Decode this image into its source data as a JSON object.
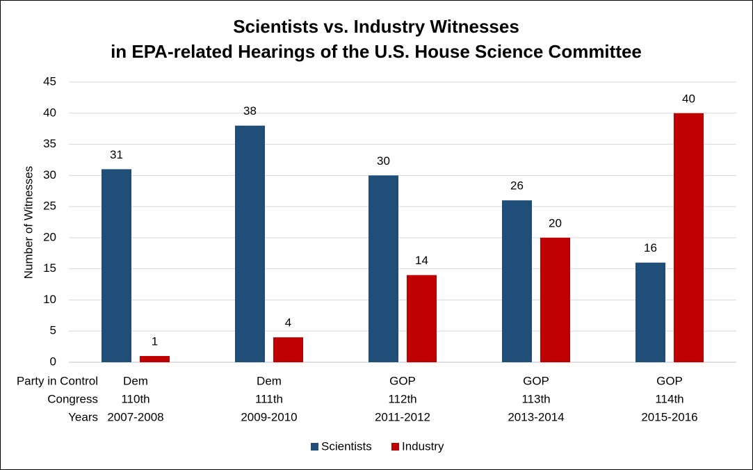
{
  "chart_data": {
    "type": "bar",
    "title": [
      "Scientists vs. Industry Witnesses",
      "in EPA-related Hearings of the U.S. House Science Committee"
    ],
    "y_label": "Number of Witnesses",
    "category_levels": [
      "Party in Control",
      "Congress",
      "Years"
    ],
    "categories": [
      [
        "Dem",
        "110th",
        "2007-2008"
      ],
      [
        "Dem",
        "111th",
        "2009-2010"
      ],
      [
        "GOP",
        "112th",
        "2011-2012"
      ],
      [
        "GOP",
        "113th",
        "2013-2014"
      ],
      [
        "GOP",
        "114th",
        "2015-2016"
      ]
    ],
    "series": [
      {
        "name": "Scientists",
        "color": "#1f4e79",
        "values": [
          31,
          38,
          30,
          26,
          16
        ]
      },
      {
        "name": "Industry",
        "color": "#c00000",
        "values": [
          1,
          4,
          14,
          20,
          40
        ]
      }
    ],
    "ylim": [
      0,
      45
    ],
    "yticks": [
      0,
      5,
      10,
      15,
      20,
      25,
      30,
      35,
      40,
      45
    ],
    "grid": true,
    "legend": "bottom"
  }
}
